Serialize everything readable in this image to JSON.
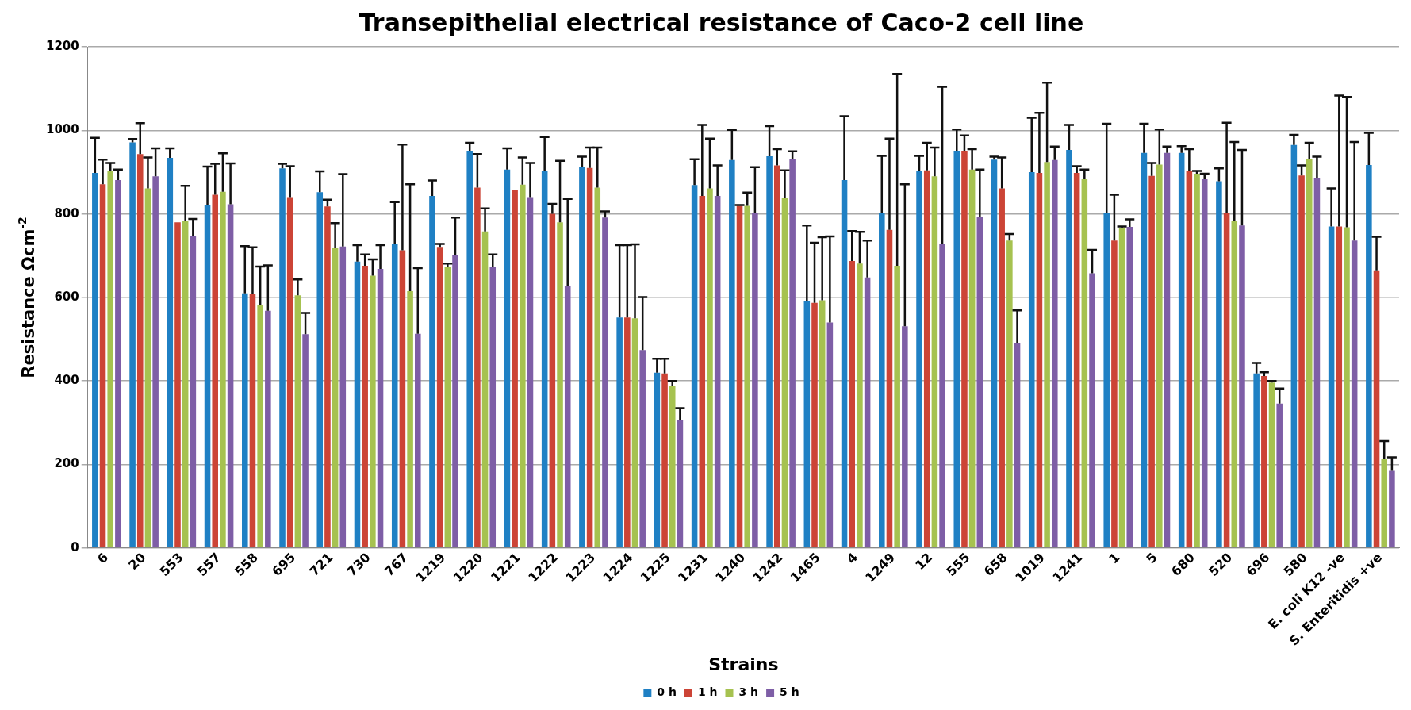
{
  "chart_data": {
    "type": "bar",
    "title": "Transepithelial electrical resistance of Caco-2 cell line",
    "xlabel": "Strains",
    "ylabel": "Resistance Ωcm$^{-2}$",
    "categories": [
      "6",
      "20",
      "553",
      "557",
      "558",
      "695",
      "721",
      "730",
      "767",
      "1219",
      "1220",
      "1221",
      "1222",
      "1223",
      "1224",
      "1225",
      "1231",
      "1240",
      "1242",
      "1465",
      "4",
      "1249",
      "12",
      "555",
      "658",
      "1019",
      "1241",
      "1",
      "5",
      "680",
      "520",
      "696",
      "580",
      "E. coli K12 -ve",
      "S. Enteritidis +ve"
    ],
    "series": [
      {
        "name": "0 h",
        "color": "#1f80c4",
        "values": [
          898,
          971,
          934,
          821,
          610,
          909,
          852,
          686,
          727,
          843,
          951,
          906,
          902,
          913,
          552,
          420,
          869,
          929,
          938,
          591,
          881,
          802,
          902,
          951,
          930,
          900,
          953,
          801,
          946,
          946,
          878,
          418,
          965,
          770,
          917
        ],
        "errors": [
          [
            898,
            982
          ],
          [
            971,
            979
          ],
          [
            934,
            957
          ],
          [
            821,
            913
          ],
          [
            610,
            723
          ],
          [
            909,
            920
          ],
          [
            852,
            902
          ],
          [
            686,
            725
          ],
          [
            727,
            828
          ],
          [
            843,
            880
          ],
          [
            951,
            970
          ],
          [
            906,
            957
          ],
          [
            902,
            984
          ],
          [
            913,
            937
          ],
          [
            552,
            725
          ],
          [
            420,
            453
          ],
          [
            869,
            931
          ],
          [
            929,
            1001
          ],
          [
            938,
            1010
          ],
          [
            591,
            772
          ],
          [
            881,
            1034
          ],
          [
            802,
            939
          ],
          [
            902,
            939
          ],
          [
            951,
            1002
          ],
          [
            930,
            937
          ],
          [
            900,
            1030
          ],
          [
            953,
            1013
          ],
          [
            801,
            1016
          ],
          [
            946,
            1016
          ],
          [
            946,
            962
          ],
          [
            878,
            909
          ],
          [
            418,
            443
          ],
          [
            965,
            989
          ],
          [
            770,
            861
          ],
          [
            917,
            994
          ]
        ]
      },
      {
        "name": "1 h",
        "color": "#cc4436",
        "values": [
          871,
          943,
          780,
          846,
          609,
          840,
          818,
          676,
          713,
          721,
          863,
          857,
          800,
          910,
          552,
          418,
          843,
          819,
          916,
          587,
          687,
          762,
          904,
          951,
          861,
          898,
          898,
          736,
          891,
          902,
          802,
          412,
          892,
          770,
          665
        ],
        "errors": [
          [
            871,
            930
          ],
          [
            943,
            1017
          ],
          null,
          [
            846,
            920
          ],
          [
            609,
            720
          ],
          [
            840,
            914
          ],
          [
            818,
            834
          ],
          [
            676,
            703
          ],
          [
            713,
            966
          ],
          [
            721,
            728
          ],
          [
            863,
            943
          ],
          null,
          [
            800,
            824
          ],
          [
            910,
            959
          ],
          [
            552,
            725
          ],
          [
            418,
            453
          ],
          [
            843,
            1013
          ],
          [
            819,
            821
          ],
          [
            916,
            955
          ],
          [
            587,
            731
          ],
          [
            687,
            759
          ],
          [
            762,
            980
          ],
          [
            904,
            970
          ],
          [
            951,
            988
          ],
          [
            861,
            935
          ],
          [
            898,
            1042
          ],
          [
            898,
            914
          ],
          [
            736,
            846
          ],
          [
            891,
            922
          ],
          [
            902,
            955
          ],
          [
            802,
            1018
          ],
          [
            412,
            421
          ],
          [
            892,
            916
          ],
          [
            770,
            1083
          ],
          [
            665,
            745
          ]
        ]
      },
      {
        "name": "3 h",
        "color": "#a6c250",
        "values": [
          902,
          861,
          783,
          853,
          581,
          605,
          719,
          652,
          615,
          672,
          758,
          870,
          780,
          863,
          550,
          388,
          861,
          819,
          839,
          593,
          681,
          676,
          890,
          906,
          736,
          924,
          883,
          765,
          918,
          896,
          783,
          396,
          931,
          768,
          213
        ],
        "errors": [
          [
            902,
            922
          ],
          [
            861,
            935
          ],
          [
            783,
            867
          ],
          [
            853,
            945
          ],
          [
            581,
            674
          ],
          [
            605,
            643
          ],
          [
            719,
            778
          ],
          [
            652,
            691
          ],
          [
            615,
            871
          ],
          [
            672,
            681
          ],
          [
            758,
            813
          ],
          [
            870,
            935
          ],
          [
            780,
            927
          ],
          [
            863,
            959
          ],
          [
            550,
            727
          ],
          [
            388,
            400
          ],
          [
            861,
            980
          ],
          [
            819,
            851
          ],
          [
            839,
            904
          ],
          [
            593,
            744
          ],
          [
            681,
            757
          ],
          [
            676,
            1135
          ],
          [
            890,
            959
          ],
          [
            906,
            955
          ],
          [
            736,
            752
          ],
          [
            924,
            1114
          ],
          [
            883,
            906
          ],
          [
            765,
            770
          ],
          [
            918,
            1002
          ],
          [
            896,
            903
          ],
          [
            783,
            972
          ],
          [
            396,
            400
          ],
          [
            931,
            970
          ],
          [
            768,
            1080
          ],
          [
            213,
            256
          ]
        ]
      },
      {
        "name": "5 h",
        "color": "#7e5ea6",
        "values": [
          881,
          890,
          746,
          823,
          568,
          512,
          722,
          668,
          513,
          702,
          673,
          840,
          628,
          791,
          474,
          306,
          843,
          802,
          931,
          540,
          648,
          531,
          729,
          792,
          491,
          929,
          658,
          769,
          946,
          883,
          772,
          346,
          886,
          736,
          185
        ],
        "errors": [
          [
            881,
            906
          ],
          [
            890,
            957
          ],
          [
            746,
            788
          ],
          [
            823,
            921
          ],
          [
            568,
            677
          ],
          [
            512,
            563
          ],
          [
            722,
            895
          ],
          [
            668,
            725
          ],
          [
            513,
            670
          ],
          [
            702,
            791
          ],
          [
            673,
            703
          ],
          [
            840,
            922
          ],
          [
            628,
            836
          ],
          [
            791,
            806
          ],
          [
            474,
            601
          ],
          [
            306,
            335
          ],
          [
            843,
            916
          ],
          [
            802,
            912
          ],
          [
            931,
            950
          ],
          [
            540,
            746
          ],
          [
            648,
            736
          ],
          [
            531,
            871
          ],
          [
            729,
            1104
          ],
          [
            792,
            906
          ],
          [
            491,
            569
          ],
          [
            929,
            961
          ],
          [
            658,
            714
          ],
          [
            769,
            787
          ],
          [
            946,
            961
          ],
          [
            883,
            896
          ],
          [
            772,
            953
          ],
          [
            346,
            382
          ],
          [
            886,
            937
          ],
          [
            736,
            972
          ],
          [
            185,
            217
          ]
        ]
      }
    ],
    "ylim": [
      0,
      1200
    ],
    "yticks": [
      0,
      200,
      400,
      600,
      800,
      1000,
      1200
    ],
    "grid": "y",
    "legend": "bottom"
  }
}
